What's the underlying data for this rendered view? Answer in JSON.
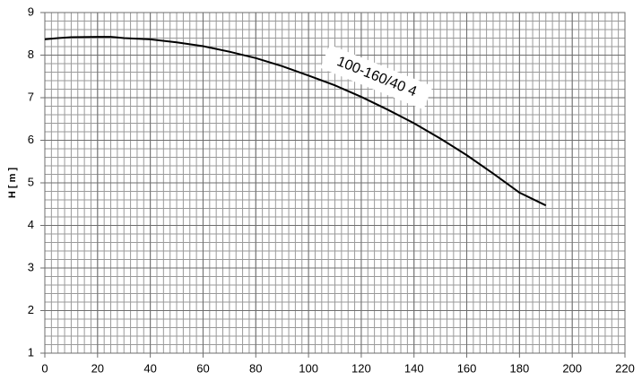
{
  "chart_data": {
    "type": "line",
    "y_label": "H [ m ]",
    "x": [
      0,
      5,
      10,
      20,
      25,
      30,
      40,
      50,
      60,
      70,
      80,
      90,
      100,
      110,
      120,
      130,
      140,
      150,
      160,
      170,
      180,
      190
    ],
    "series": [
      {
        "name": "100-160/40 4",
        "color": "#000000",
        "values": [
          8.37,
          8.4,
          8.42,
          8.43,
          8.43,
          8.4,
          8.37,
          8.3,
          8.21,
          8.08,
          7.93,
          7.74,
          7.52,
          7.29,
          7.02,
          6.72,
          6.4,
          6.04,
          5.65,
          5.22,
          4.77,
          4.47
        ]
      }
    ],
    "xlim": [
      0,
      220
    ],
    "xticks": [
      0,
      20,
      40,
      60,
      80,
      100,
      120,
      140,
      160,
      180,
      200,
      220
    ],
    "ylim": [
      1,
      9
    ],
    "yticks": [
      1,
      2,
      3,
      4,
      5,
      6,
      7,
      8,
      9
    ],
    "grid": true,
    "minor_grid_step": [
      2.5,
      0.2
    ]
  }
}
